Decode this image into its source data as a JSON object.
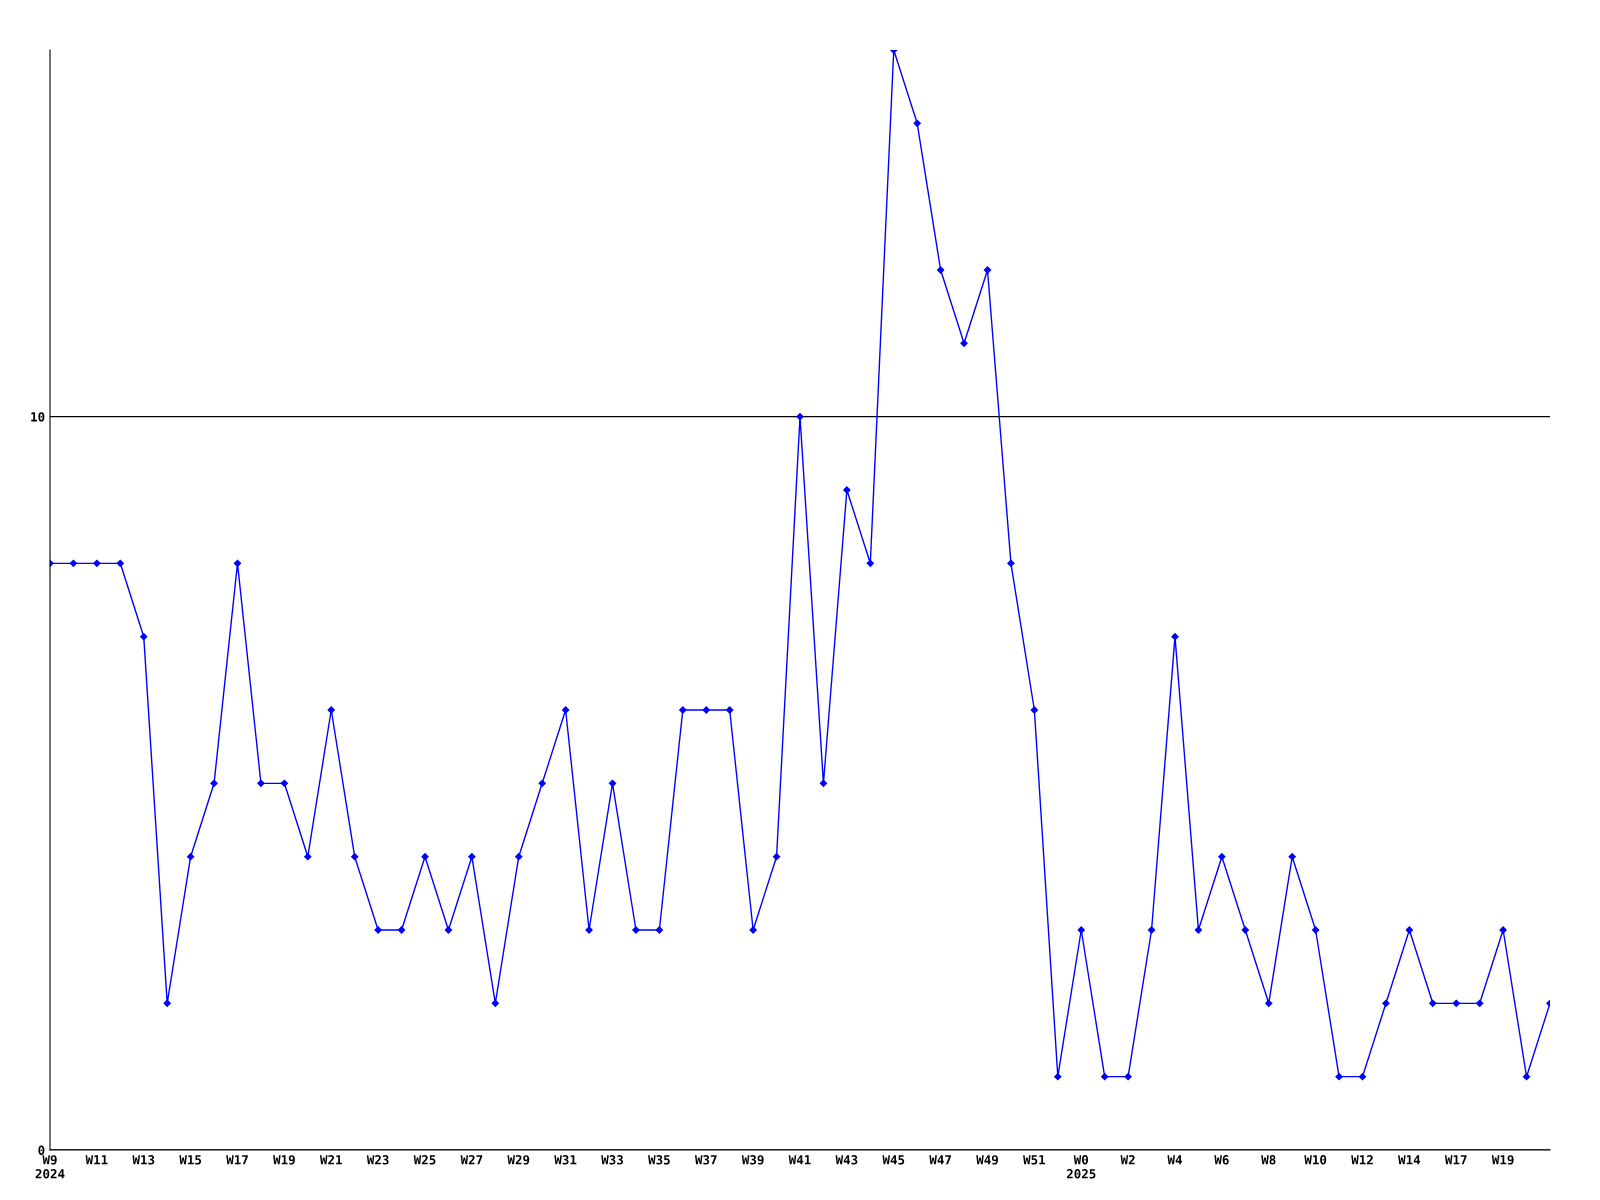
{
  "chart_data": {
    "type": "line",
    "categories": [
      "W9\n2024",
      null,
      "W11",
      null,
      "W13",
      null,
      "W15",
      null,
      "W17",
      null,
      "W19",
      null,
      "W21",
      null,
      "W23",
      null,
      "W25",
      null,
      "W27",
      null,
      "W29",
      null,
      "W31",
      null,
      "W33",
      null,
      "W35",
      null,
      "W37",
      null,
      "W39",
      null,
      "W41",
      null,
      "W43",
      null,
      "W45",
      null,
      "W47",
      null,
      "W49",
      null,
      "W51",
      null,
      "W0\n2025",
      null,
      "W2",
      null,
      "W4",
      null,
      "W6",
      null,
      "W8",
      null,
      "W10",
      null,
      "W12",
      null,
      "W14",
      null,
      "W17",
      null,
      "W19",
      null,
      null
    ],
    "series": [
      {
        "color": "#0000ff",
        "values": [
          8,
          8,
          8,
          8,
          7,
          2,
          4,
          5,
          8,
          5,
          5,
          4,
          6,
          4,
          3,
          3,
          4,
          3,
          4,
          2,
          4,
          5,
          6,
          3,
          5,
          3,
          3,
          6,
          6,
          6,
          3,
          4,
          10,
          5,
          9,
          8,
          15,
          14,
          12,
          11,
          12,
          8,
          6,
          1,
          3,
          1,
          1,
          3,
          7,
          3,
          4,
          3,
          2,
          4,
          3,
          1,
          1,
          2,
          3,
          2,
          2,
          2,
          3,
          1,
          2
        ]
      }
    ],
    "ylim": [
      0,
      15
    ],
    "yticks": [
      0,
      10
    ],
    "grid": "y",
    "marker": "diamond",
    "line_style": "solid"
  }
}
